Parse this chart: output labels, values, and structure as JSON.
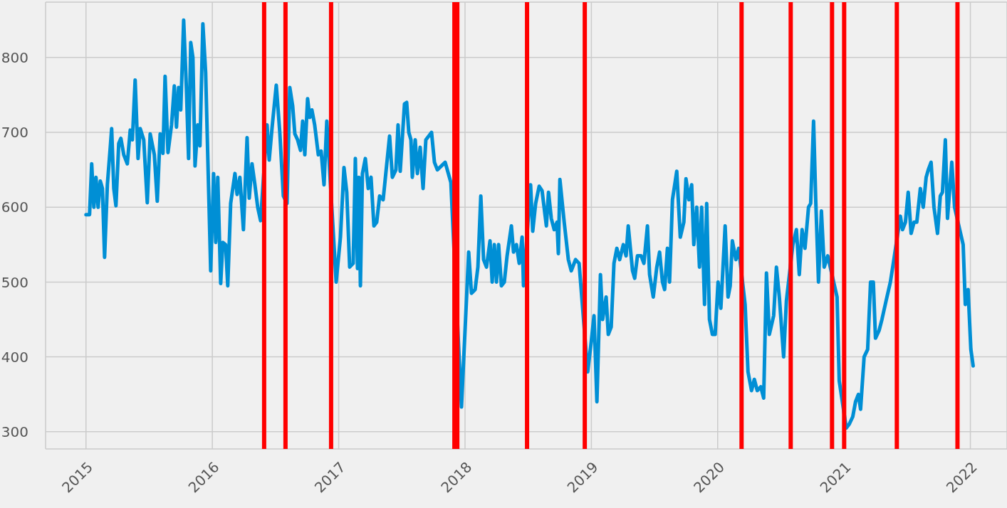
{
  "chart_data": {
    "type": "line",
    "x": [
      2015.0,
      2015.028,
      2015.045,
      2015.062,
      2015.079,
      2015.096,
      2015.113,
      2015.13,
      2015.147,
      2015.169,
      2015.192,
      2015.203,
      2015.22,
      2015.237,
      2015.259,
      2015.276,
      2015.299,
      2015.327,
      2015.35,
      2015.367,
      2015.389,
      2015.412,
      2015.429,
      2015.457,
      2015.485,
      2015.508,
      2015.541,
      2015.564,
      2015.587,
      2015.609,
      2015.626,
      2015.649,
      2015.677,
      2015.699,
      2015.716,
      2015.733,
      2015.75,
      2015.773,
      2015.795,
      2015.812,
      2015.829,
      2015.846,
      2015.863,
      2015.885,
      2015.902,
      2015.925,
      2015.947,
      2015.987,
      2016.01,
      2016.027,
      2016.043,
      2016.066,
      2016.083,
      2016.105,
      2016.122,
      2016.145,
      2016.179,
      2016.196,
      2016.218,
      2016.246,
      2016.275,
      2016.292,
      2016.314,
      2016.337,
      2016.359,
      2016.382,
      2016.433,
      2016.45,
      2016.472,
      2016.506,
      2016.534,
      2016.562,
      2016.591,
      2016.613,
      2016.636,
      2016.653,
      2016.675,
      2016.698,
      2016.715,
      2016.732,
      2016.754,
      2016.771,
      2016.788,
      2016.81,
      2016.839,
      2016.861,
      2016.884,
      2016.906,
      2016.98,
      2017.014,
      2017.042,
      2017.064,
      2017.087,
      2017.115,
      2017.132,
      2017.149,
      2017.16,
      2017.172,
      2017.188,
      2017.211,
      2017.234,
      2017.256,
      2017.279,
      2017.301,
      2017.324,
      2017.352,
      2017.403,
      2017.425,
      2017.453,
      2017.47,
      2017.487,
      2017.521,
      2017.538,
      2017.555,
      2017.572,
      2017.583,
      2017.606,
      2017.623,
      2017.645,
      2017.668,
      2017.69,
      2017.713,
      2017.735,
      2017.758,
      2017.781,
      2017.843,
      2017.888,
      2017.972,
      2018.029,
      2018.051,
      2018.08,
      2018.102,
      2018.125,
      2018.147,
      2018.17,
      2018.198,
      2018.215,
      2018.232,
      2018.249,
      2018.266,
      2018.288,
      2018.311,
      2018.333,
      2018.367,
      2018.384,
      2018.407,
      2018.429,
      2018.452,
      2018.463,
      2018.519,
      2018.536,
      2018.559,
      2018.587,
      2018.61,
      2018.644,
      2018.661,
      2018.683,
      2018.706,
      2018.728,
      2018.739,
      2018.751,
      2018.785,
      2018.818,
      2018.841,
      2018.875,
      2018.903,
      2018.971,
      2018.999,
      2019.021,
      2019.044,
      2019.072,
      2019.089,
      2019.117,
      2019.134,
      2019.157,
      2019.179,
      2019.202,
      2019.224,
      2019.253,
      2019.275,
      2019.292,
      2019.326,
      2019.343,
      2019.365,
      2019.394,
      2019.416,
      2019.444,
      2019.461,
      2019.49,
      2019.518,
      2019.54,
      2019.563,
      2019.58,
      2019.602,
      2019.619,
      2019.642,
      2019.676,
      2019.704,
      2019.732,
      2019.749,
      2019.772,
      2019.794,
      2019.811,
      2019.834,
      2019.856,
      2019.873,
      2019.896,
      2019.913,
      2019.935,
      2019.958,
      2019.98,
      2020.003,
      2020.025,
      2020.059,
      2020.082,
      2020.099,
      2020.116,
      2020.144,
      2020.166,
      2020.217,
      2020.24,
      2020.268,
      2020.29,
      2020.313,
      2020.341,
      2020.364,
      2020.386,
      2020.409,
      2020.443,
      2020.465,
      2020.488,
      2020.522,
      2020.544,
      2020.595,
      2020.623,
      2020.646,
      2020.668,
      2020.691,
      2020.719,
      2020.736,
      2020.759,
      2020.776,
      2020.798,
      2020.821,
      2020.843,
      2020.871,
      2020.945,
      2020.962,
      2021.018,
      2021.041,
      2021.069,
      2021.091,
      2021.114,
      2021.131,
      2021.159,
      2021.187,
      2021.21,
      2021.232,
      2021.249,
      2021.277,
      2021.3,
      2021.333,
      2021.367,
      2021.39,
      2021.446,
      2021.463,
      2021.486,
      2021.508,
      2021.531,
      2021.554,
      2021.576,
      2021.604,
      2021.627,
      2021.65,
      2021.667,
      2021.689,
      2021.712,
      2021.74,
      2021.762,
      2021.779,
      2021.802,
      2021.819,
      2021.853,
      2021.875,
      2021.943,
      2021.96,
      2021.982,
      2022.004,
      2022.022
    ],
    "series": [
      {
        "color": "#008fd5",
        "values": [
          590,
          590,
          658,
          600,
          640,
          600,
          635,
          625,
          533,
          630,
          680,
          705,
          625,
          602,
          685,
          692,
          670,
          658,
          703,
          690,
          770,
          665,
          705,
          690,
          606,
          698,
          670,
          608,
          698,
          672,
          775,
          673,
          710,
          762,
          707,
          760,
          730,
          850,
          757,
          665,
          820,
          800,
          655,
          710,
          682,
          845,
          780,
          515,
          645,
          553,
          640,
          498,
          553,
          550,
          495,
          605,
          645,
          617,
          640,
          570,
          693,
          612,
          658,
          630,
          600,
          582,
          710,
          663,
          705,
          763,
          700,
          615,
          605,
          760,
          735,
          698,
          690,
          676,
          715,
          670,
          745,
          720,
          730,
          710,
          670,
          675,
          630,
          715,
          500,
          560,
          653,
          620,
          520,
          525,
          665,
          518,
          640,
          495,
          645,
          665,
          625,
          640,
          575,
          580,
          615,
          610,
          695,
          640,
          650,
          710,
          648,
          738,
          740,
          700,
          690,
          640,
          690,
          645,
          680,
          625,
          690,
          695,
          700,
          660,
          650,
          660,
          633,
          333,
          540,
          485,
          490,
          520,
          615,
          530,
          520,
          555,
          500,
          550,
          500,
          550,
          495,
          500,
          535,
          575,
          540,
          550,
          525,
          560,
          495,
          630,
          568,
          605,
          628,
          622,
          575,
          620,
          585,
          570,
          580,
          538,
          637,
          580,
          530,
          515,
          530,
          525,
          380,
          420,
          455,
          340,
          510,
          450,
          480,
          430,
          440,
          525,
          545,
          530,
          550,
          535,
          575,
          515,
          505,
          535,
          535,
          525,
          575,
          510,
          480,
          520,
          540,
          500,
          490,
          545,
          500,
          610,
          648,
          560,
          580,
          638,
          610,
          630,
          550,
          600,
          520,
          600,
          470,
          605,
          450,
          430,
          430,
          500,
          465,
          575,
          480,
          495,
          555,
          530,
          545,
          470,
          380,
          355,
          370,
          355,
          360,
          345,
          512,
          430,
          455,
          520,
          480,
          400,
          475,
          550,
          570,
          510,
          570,
          545,
          600,
          605,
          715,
          610,
          500,
          595,
          520,
          535,
          480,
          368,
          305,
          310,
          320,
          340,
          350,
          330,
          400,
          410,
          500,
          500,
          425,
          435,
          450,
          475,
          500,
          525,
          588,
          570,
          580,
          620,
          565,
          580,
          580,
          625,
          600,
          640,
          650,
          660,
          600,
          565,
          615,
          620,
          690,
          585,
          660,
          600,
          550,
          470,
          490,
          410,
          388
        ]
      }
    ],
    "xlim": [
      2014.68,
      2022.29
    ],
    "xticks": [
      2015,
      2016,
      2017,
      2018,
      2019,
      2020,
      2021,
      2022
    ],
    "ylim": [
      277,
      874
    ],
    "yticks": [
      300,
      400,
      500,
      600,
      700,
      800
    ],
    "grid": true,
    "ref_lines": [
      {
        "axis": "x",
        "value": 2016.41,
        "color": "#ff0000"
      },
      {
        "axis": "x",
        "value": 2016.579,
        "color": "#ff0000"
      },
      {
        "axis": "x",
        "value": 2016.94,
        "color": "#ff0000"
      },
      {
        "axis": "x",
        "value": 2017.916,
        "color": "#ff0000"
      },
      {
        "axis": "x",
        "value": 2017.939,
        "color": "#ff0000"
      },
      {
        "axis": "x",
        "value": 2018.491,
        "color": "#ff0000"
      },
      {
        "axis": "x",
        "value": 2018.948,
        "color": "#ff0000"
      },
      {
        "axis": "x",
        "value": 2020.189,
        "color": "#ff0000"
      },
      {
        "axis": "x",
        "value": 2020.578,
        "color": "#ff0000"
      },
      {
        "axis": "x",
        "value": 2020.905,
        "color": "#ff0000"
      },
      {
        "axis": "x",
        "value": 2021.001,
        "color": "#ff0000"
      },
      {
        "axis": "x",
        "value": 2021.418,
        "color": "#ff0000"
      },
      {
        "axis": "x",
        "value": 2021.898,
        "color": "#ff0000"
      }
    ]
  }
}
